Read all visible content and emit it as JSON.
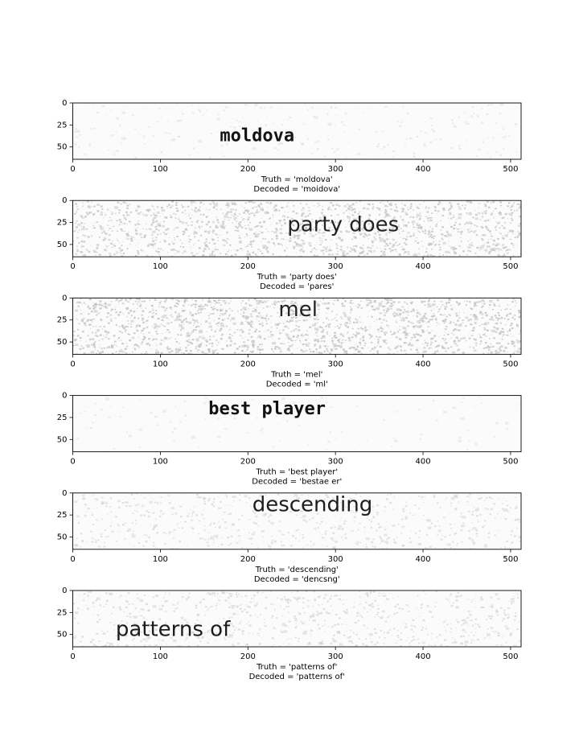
{
  "chart_data": [
    {
      "type": "image",
      "text_in_image": "moldova",
      "noise_level": 0.1,
      "ink_color": "#141414",
      "text_style": "bold-mono",
      "xlim": [
        0,
        512
      ],
      "ylim": [
        64,
        0
      ],
      "xticks": [
        0,
        100,
        200,
        300,
        400,
        500
      ],
      "yticks": [
        0,
        25,
        50
      ],
      "text_x": 168,
      "text_y_center": 38,
      "caption_lines": [
        "Truth = 'moldova'",
        "Decoded = 'moidova'"
      ]
    },
    {
      "type": "image",
      "text_in_image": "party does",
      "noise_level": 0.55,
      "ink_color": "#222222",
      "text_style": "sans",
      "xlim": [
        0,
        512
      ],
      "ylim": [
        64,
        0
      ],
      "xticks": [
        0,
        100,
        200,
        300,
        400,
        500
      ],
      "yticks": [
        0,
        25,
        50
      ],
      "text_x": 245,
      "text_y_center": 28,
      "caption_lines": [
        "Truth = 'party does'",
        "Decoded = 'pares'"
      ]
    },
    {
      "type": "image",
      "text_in_image": "mel",
      "noise_level": 0.6,
      "ink_color": "#222222",
      "text_style": "sans",
      "xlim": [
        0,
        512
      ],
      "ylim": [
        64,
        0
      ],
      "xticks": [
        0,
        100,
        200,
        300,
        400,
        500
      ],
      "yticks": [
        0,
        25,
        50
      ],
      "text_x": 235,
      "text_y_center": 14,
      "caption_lines": [
        "Truth = 'mel'",
        "Decoded = 'ml'"
      ]
    },
    {
      "type": "image",
      "text_in_image": "best player",
      "noise_level": 0.05,
      "ink_color": "#111111",
      "text_style": "bold-mono",
      "xlim": [
        0,
        512
      ],
      "ylim": [
        64,
        0
      ],
      "xticks": [
        0,
        100,
        200,
        300,
        400,
        500
      ],
      "yticks": [
        0,
        25,
        50
      ],
      "text_x": 155,
      "text_y_center": 16,
      "caption_lines": [
        "Truth = 'best player'",
        "Decoded = 'bestae er'"
      ]
    },
    {
      "type": "image",
      "text_in_image": "descending",
      "noise_level": 0.25,
      "ink_color": "#1c1c1c",
      "text_style": "sans",
      "xlim": [
        0,
        512
      ],
      "ylim": [
        64,
        0
      ],
      "xticks": [
        0,
        100,
        200,
        300,
        400,
        500
      ],
      "yticks": [
        0,
        25,
        50
      ],
      "text_x": 205,
      "text_y_center": 14,
      "caption_lines": [
        "Truth = 'descending'",
        "Decoded = 'dencsng'"
      ]
    },
    {
      "type": "image",
      "text_in_image": "patterns of",
      "noise_level": 0.3,
      "ink_color": "#1c1c1c",
      "text_style": "sans",
      "xlim": [
        0,
        512
      ],
      "ylim": [
        64,
        0
      ],
      "xticks": [
        0,
        100,
        200,
        300,
        400,
        500
      ],
      "yticks": [
        0,
        25,
        50
      ],
      "text_x": 49,
      "text_y_center": 45,
      "caption_lines": [
        "Truth = 'patterns of'",
        "Decoded = 'patterns of'"
      ]
    }
  ]
}
